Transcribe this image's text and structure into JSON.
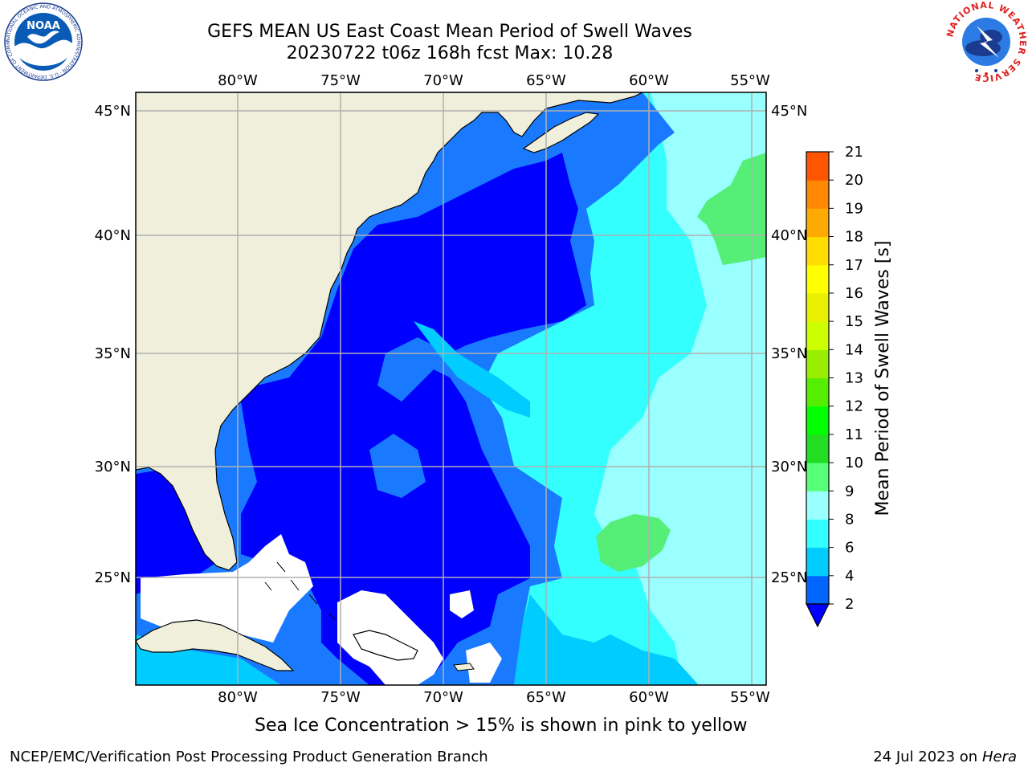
{
  "title": {
    "line1": "GEFS MEAN US East Coast Mean Period of Swell Waves",
    "line2": "20230722 t06z 168h fcst   Max: 10.28"
  },
  "map": {
    "lon_ticks": [
      "80°W",
      "75°W",
      "70°W",
      "65°W",
      "60°W",
      "55°W"
    ],
    "lat_ticks": [
      "45°N",
      "40°N",
      "35°N",
      "30°N",
      "25°N"
    ],
    "colors": {
      "land": "#efefdc",
      "coast": "#000000",
      "grid": "#b0b0b0",
      "ice_mask": "#ffffff"
    }
  },
  "colorbar": {
    "label": "Mean Period of Swell Waves [s]",
    "ticks": [
      "2",
      "4",
      "6",
      "8",
      "9",
      "10",
      "11",
      "12",
      "13",
      "14",
      "15",
      "16",
      "17",
      "18",
      "19",
      "20",
      "21"
    ],
    "bands": [
      "#0066ff",
      "#00ccff",
      "#33ffff",
      "#99ffff",
      "#55ff77",
      "#22dd22",
      "#00ff00",
      "#55ee00",
      "#99ee00",
      "#ccff00",
      "#e8f000",
      "#ffff00",
      "#ffdd00",
      "#ffaa00",
      "#ff8800",
      "#ff5500",
      "#ff2200",
      "#ff0000"
    ],
    "under_color": "#0000ff"
  },
  "caption": "Sea Ice Concentration > 15% is shown in pink to yellow",
  "footer": {
    "left": "NCEP/EMC/Verification Post Processing Product Generation Branch",
    "right_date": "24 Jul 2023 on ",
    "right_host": "Hera"
  },
  "logos": {
    "noaa_text": "NOAA",
    "noaa_ring": "NATIONAL OCEANIC AND ATMOSPHERIC ADMINISTRATION · U.S. DEPARTMENT OF COMMERCE",
    "nws_ring": "NATIONAL WEATHER SERVICE"
  }
}
